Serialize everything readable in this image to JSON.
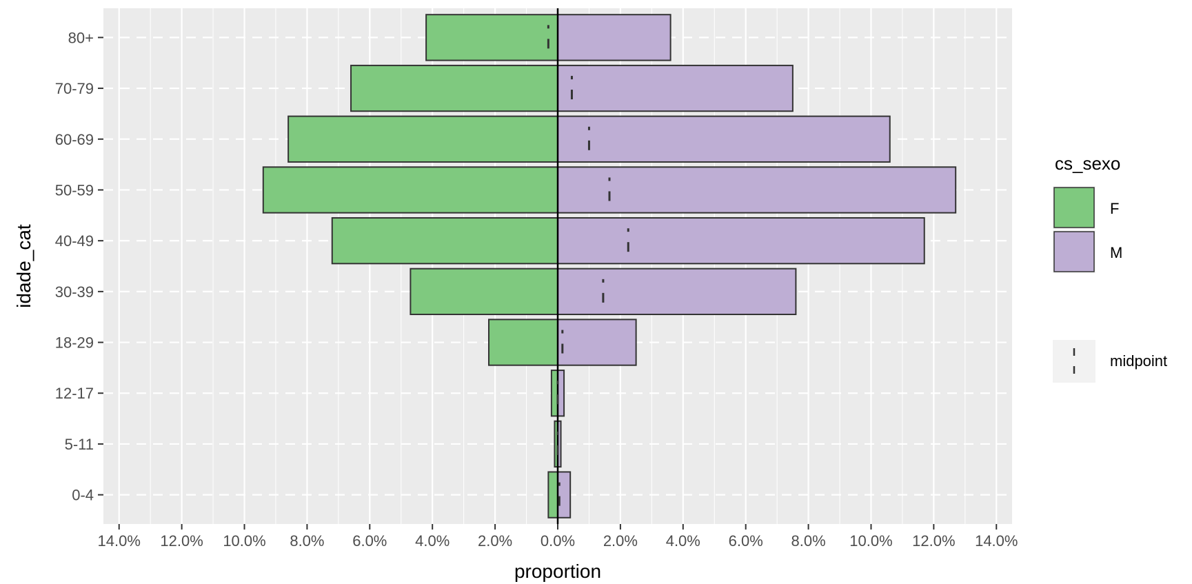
{
  "chart_data": {
    "type": "bar",
    "orientation": "horizontal",
    "subtype": "population-pyramid",
    "xlabel": "proportion",
    "ylabel": "idade_cat",
    "xlim": [
      -14.5,
      14.5
    ],
    "x_ticks": [
      -14,
      -12,
      -10,
      -8,
      -6,
      -4,
      -2,
      0,
      2,
      4,
      6,
      8,
      10,
      12,
      14
    ],
    "x_tick_labels": [
      "14.0%",
      "12.0%",
      "10.0%",
      "8.0%",
      "6.0%",
      "4.0%",
      "2.0%",
      "0.0%",
      "2.0%",
      "4.0%",
      "6.0%",
      "8.0%",
      "10.0%",
      "12.0%",
      "14.0%"
    ],
    "categories": [
      "0-4",
      "5-11",
      "12-17",
      "18-29",
      "30-39",
      "40-49",
      "50-59",
      "60-69",
      "70-79",
      "80+"
    ],
    "series": [
      {
        "name": "F",
        "values": [
          -0.3,
          -0.1,
          -0.2,
          -2.2,
          -4.7,
          -7.2,
          -9.4,
          -8.6,
          -6.6,
          -4.2
        ]
      },
      {
        "name": "M",
        "values": [
          0.4,
          0.1,
          0.2,
          2.5,
          7.6,
          11.7,
          12.7,
          10.6,
          7.5,
          3.6
        ]
      }
    ],
    "midpoint_series": {
      "name": "midpoint",
      "values": [
        0.05,
        0.0,
        0.0,
        0.15,
        1.45,
        2.25,
        1.65,
        1.0,
        0.45,
        -0.3
      ]
    },
    "colors": {
      "F": "#7fc97f",
      "M": "#beaed4",
      "panel": "#ebebeb",
      "grid": "#ffffff"
    },
    "legend": {
      "title": "cs_sexo",
      "position": "right",
      "entries": [
        "F",
        "M"
      ],
      "midpoint_label": "midpoint"
    },
    "grid": true
  }
}
